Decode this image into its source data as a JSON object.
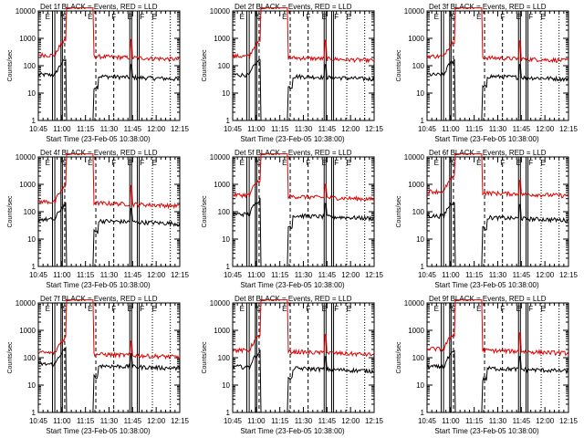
{
  "figure": {
    "window_title": "Counts/sec per detector",
    "colors": {
      "events": "#000000",
      "lld": "#e00000",
      "axes": "#000000"
    }
  },
  "chart_data": [
    {
      "type": "line",
      "panel": 1,
      "title": "Det 1f BLACK = Events, RED = LLD",
      "xlabel": "Start Time (23-Feb-05 10:38:00)",
      "ylabel": "Counts/sec",
      "ylog": true,
      "ylim": [
        1,
        10000
      ],
      "xlim": [
        10.75,
        12.25
      ],
      "xticks": [
        10.75,
        11.0,
        11.25,
        11.5,
        11.75,
        12.0,
        12.25
      ],
      "xtick_labels": [
        "10:45",
        "11:00",
        "11:15",
        "11:30",
        "11:45",
        "12:00",
        "12:15"
      ],
      "yticks": [
        1,
        10,
        100,
        1000,
        10000
      ],
      "ytick_labels": [
        "1",
        "10",
        "100",
        "1000",
        "10000"
      ],
      "marker_labels": [
        "E",
        "S",
        "E",
        "F",
        "E",
        "F",
        "E"
      ],
      "series": [
        {
          "name": "Events",
          "color": "#000000",
          "baseline": 40,
          "spike": 110
        },
        {
          "name": "LLD",
          "color": "#e00000",
          "baseline": 210,
          "spike": 900
        }
      ],
      "saturation_interval": [
        11.05,
        11.33
      ]
    },
    {
      "type": "line",
      "panel": 2,
      "title": "Det 2f BLACK = Events, RED = LLD",
      "xlabel": "Start Time (23-Feb-05 10:38:00)",
      "ylabel": "Counts/sec",
      "ylog": true,
      "ylim": [
        1,
        10000
      ],
      "xlim": [
        10.75,
        12.25
      ],
      "xticks": [
        10.75,
        11.0,
        11.25,
        11.5,
        11.75,
        12.0,
        12.25
      ],
      "xtick_labels": [
        "10:45",
        "11:00",
        "11:15",
        "11:30",
        "11:45",
        "12:00",
        "12:15"
      ],
      "yticks": [
        1,
        10,
        100,
        1000,
        10000
      ],
      "ytick_labels": [
        "1",
        "10",
        "100",
        "1000",
        "10000"
      ],
      "marker_labels": [
        "E",
        "S",
        "E",
        "F",
        "E",
        "F",
        "E"
      ],
      "series": [
        {
          "name": "Events",
          "color": "#000000",
          "baseline": 40,
          "spike": 110
        },
        {
          "name": "LLD",
          "color": "#e00000",
          "baseline": 190,
          "spike": 850
        }
      ],
      "saturation_interval": [
        11.05,
        11.33
      ]
    },
    {
      "type": "line",
      "panel": 3,
      "title": "Det 3f BLACK = Events, RED = LLD",
      "xlabel": "Start Time (23-Feb-05 10:38:00)",
      "ylabel": "Counts/sec",
      "ylog": true,
      "ylim": [
        1,
        10000
      ],
      "xlim": [
        10.75,
        12.25
      ],
      "xticks": [
        10.75,
        11.0,
        11.25,
        11.5,
        11.75,
        12.0,
        12.25
      ],
      "xtick_labels": [
        "10:45",
        "11:00",
        "11:15",
        "11:30",
        "11:45",
        "12:00",
        "12:15"
      ],
      "yticks": [
        1,
        10,
        100,
        1000,
        10000
      ],
      "ytick_labels": [
        "1",
        "10",
        "100",
        "1000",
        "10000"
      ],
      "marker_labels": [
        "E",
        "S",
        "E",
        "F",
        "E",
        "F",
        "E"
      ],
      "series": [
        {
          "name": "Events",
          "color": "#000000",
          "baseline": 40,
          "spike": 110
        },
        {
          "name": "LLD",
          "color": "#e00000",
          "baseline": 190,
          "spike": 800
        }
      ],
      "saturation_interval": [
        11.05,
        11.33
      ]
    },
    {
      "type": "line",
      "panel": 4,
      "title": "Det 4f BLACK = Events, RED = LLD",
      "xlabel": "Start Time (23-Feb-05 10:38:00)",
      "ylabel": "Counts/sec",
      "ylog": true,
      "ylim": [
        1,
        10000
      ],
      "xlim": [
        10.75,
        12.25
      ],
      "xticks": [
        10.75,
        11.0,
        11.25,
        11.5,
        11.75,
        12.0,
        12.25
      ],
      "xtick_labels": [
        "10:45",
        "11:00",
        "11:15",
        "11:30",
        "11:45",
        "12:00",
        "12:15"
      ],
      "yticks": [
        1,
        10,
        100,
        1000,
        10000
      ],
      "ytick_labels": [
        "1",
        "10",
        "100",
        "1000",
        "10000"
      ],
      "marker_labels": [
        "E",
        "S",
        "E",
        "F",
        "E",
        "F",
        "E"
      ],
      "series": [
        {
          "name": "Events",
          "color": "#000000",
          "baseline": 45,
          "spike": 130
        },
        {
          "name": "LLD",
          "color": "#e00000",
          "baseline": 200,
          "spike": 900
        }
      ],
      "saturation_interval": [
        11.05,
        11.33
      ]
    },
    {
      "type": "line",
      "panel": 5,
      "title": "Det 5f BLACK = Events, RED = LLD",
      "xlabel": "Start Time (23-Feb-05 10:38:00)",
      "ylabel": "Counts/sec",
      "ylog": true,
      "ylim": [
        1,
        10000
      ],
      "xlim": [
        10.75,
        12.25
      ],
      "xticks": [
        10.75,
        11.0,
        11.25,
        11.5,
        11.75,
        12.0,
        12.25
      ],
      "xtick_labels": [
        "10:45",
        "11:00",
        "11:15",
        "11:30",
        "11:45",
        "12:00",
        "12:15"
      ],
      "yticks": [
        1,
        10,
        100,
        1000,
        10000
      ],
      "ytick_labels": [
        "1",
        "10",
        "100",
        "1000",
        "10000"
      ],
      "marker_labels": [
        "E",
        "S",
        "E",
        "F",
        "E",
        "F",
        "E"
      ],
      "series": [
        {
          "name": "Events",
          "color": "#000000",
          "baseline": 70,
          "spike": 200
        },
        {
          "name": "LLD",
          "color": "#e00000",
          "baseline": 350,
          "spike": 1000
        }
      ],
      "saturation_interval": [
        11.05,
        11.33
      ]
    },
    {
      "type": "line",
      "panel": 6,
      "title": "Det 6f BLACK = Events, RED = LLD",
      "xlabel": "Start Time (23-Feb-05 10:38:00)",
      "ylabel": "Counts/sec",
      "ylog": true,
      "ylim": [
        1,
        10000
      ],
      "xlim": [
        10.75,
        12.25
      ],
      "xticks": [
        10.75,
        11.0,
        11.25,
        11.5,
        11.75,
        12.0,
        12.25
      ],
      "xtick_labels": [
        "10:45",
        "11:00",
        "11:15",
        "11:30",
        "11:45",
        "12:00",
        "12:15"
      ],
      "yticks": [
        1,
        10,
        100,
        1000,
        10000
      ],
      "ytick_labels": [
        "1",
        "10",
        "100",
        "1000",
        "10000"
      ],
      "marker_labels": [
        "E",
        "S",
        "E",
        "F",
        "E",
        "F",
        "E"
      ],
      "series": [
        {
          "name": "Events",
          "color": "#000000",
          "baseline": 60,
          "spike": 180
        },
        {
          "name": "LLD",
          "color": "#e00000",
          "baseline": 470,
          "spike": 1400
        }
      ],
      "saturation_interval": [
        11.05,
        11.33
      ]
    },
    {
      "type": "line",
      "panel": 7,
      "title": "Det 7f BLACK = Events, RED = LLD",
      "xlabel": "Start Time (23-Feb-05 10:38:00)",
      "ylabel": "Counts/sec",
      "ylog": true,
      "ylim": [
        1,
        10000
      ],
      "xlim": [
        10.75,
        12.25
      ],
      "xticks": [
        10.75,
        11.0,
        11.25,
        11.5,
        11.75,
        12.0,
        12.25
      ],
      "xtick_labels": [
        "10:45",
        "11:00",
        "11:15",
        "11:30",
        "11:45",
        "12:00",
        "12:15"
      ],
      "yticks": [
        1,
        10,
        100,
        1000,
        10000
      ],
      "ytick_labels": [
        "1",
        "10",
        "100",
        "1000",
        "10000"
      ],
      "marker_labels": [
        "E",
        "S",
        "E",
        "F",
        "E",
        "F",
        "E"
      ],
      "series": [
        {
          "name": "Events",
          "color": "#000000",
          "baseline": 50,
          "spike": 140
        },
        {
          "name": "LLD",
          "color": "#e00000",
          "baseline": 130,
          "spike": 400
        }
      ],
      "saturation_interval": [
        11.05,
        11.33
      ]
    },
    {
      "type": "line",
      "panel": 8,
      "title": "Det 8f BLACK = Events, RED = LLD",
      "xlabel": "Start Time (23-Feb-05 10:38:00)",
      "ylabel": "Counts/sec",
      "ylog": true,
      "ylim": [
        1,
        10000
      ],
      "xlim": [
        10.75,
        12.25
      ],
      "xticks": [
        10.75,
        11.0,
        11.25,
        11.5,
        11.75,
        12.0,
        12.25
      ],
      "xtick_labels": [
        "10:45",
        "11:00",
        "11:15",
        "11:30",
        "11:45",
        "12:00",
        "12:15"
      ],
      "yticks": [
        1,
        10,
        100,
        1000,
        10000
      ],
      "ytick_labels": [
        "1",
        "10",
        "100",
        "1000",
        "10000"
      ],
      "marker_labels": [
        "E",
        "S",
        "E",
        "F",
        "E",
        "F",
        "E"
      ],
      "series": [
        {
          "name": "Events",
          "color": "#000000",
          "baseline": 40,
          "spike": 110
        },
        {
          "name": "LLD",
          "color": "#e00000",
          "baseline": 160,
          "spike": 700
        }
      ],
      "saturation_interval": [
        11.05,
        11.33
      ]
    },
    {
      "type": "line",
      "panel": 9,
      "title": "Det 9f BLACK = Events, RED = LLD",
      "xlabel": "Start Time (23-Feb-05 10:38:00)",
      "ylabel": "Counts/sec",
      "ylog": true,
      "ylim": [
        1,
        10000
      ],
      "xlim": [
        10.75,
        12.25
      ],
      "xticks": [
        10.75,
        11.0,
        11.25,
        11.5,
        11.75,
        12.0,
        12.25
      ],
      "xtick_labels": [
        "10:45",
        "11:00",
        "11:15",
        "11:30",
        "11:45",
        "12:00",
        "12:15"
      ],
      "yticks": [
        1,
        10,
        100,
        1000,
        10000
      ],
      "ytick_labels": [
        "1",
        "10",
        "100",
        "1000",
        "10000"
      ],
      "marker_labels": [
        "E",
        "S",
        "E",
        "F",
        "E",
        "F",
        "E"
      ],
      "series": [
        {
          "name": "Events",
          "color": "#000000",
          "baseline": 40,
          "spike": 110
        },
        {
          "name": "LLD",
          "color": "#e00000",
          "baseline": 180,
          "spike": 800
        }
      ],
      "saturation_interval": [
        11.05,
        11.33
      ]
    }
  ]
}
